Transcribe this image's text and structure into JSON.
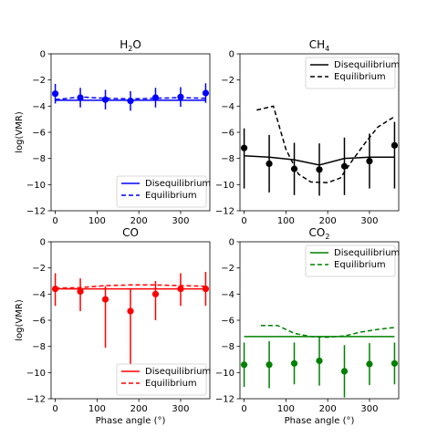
{
  "chart_data": [
    {
      "type": "line",
      "title_main": "H",
      "title_sub": "2",
      "title_tail": "O",
      "ylabel": "log(VMR)",
      "xlabel": "",
      "color": "#0000ff",
      "xlim": [
        -10,
        370
      ],
      "ylim": [
        -12,
        0
      ],
      "xticks": [
        "0",
        "100",
        "200",
        "300"
      ],
      "yticks": [
        "0",
        "−2",
        "−4",
        "−6",
        "−8",
        "−10",
        "−12"
      ],
      "legend_position": "lower-right",
      "legend": [
        "Disequilibrium",
        "Equilibrium"
      ],
      "disequilibrium": {
        "x": [
          0,
          360
        ],
        "y": [
          -3.55,
          -3.55
        ]
      },
      "equilibrium": {
        "x": [
          0,
          60,
          120,
          180,
          240,
          300,
          360
        ],
        "y": [
          -3.5,
          -3.3,
          -3.4,
          -3.45,
          -3.4,
          -3.35,
          -3.4
        ]
      },
      "points": {
        "x": [
          0,
          60,
          120,
          180,
          240,
          300,
          360
        ],
        "y": [
          -3.05,
          -3.35,
          -3.5,
          -3.6,
          -3.35,
          -3.3,
          -3.0
        ],
        "err_low": [
          0.75,
          0.75,
          0.75,
          0.75,
          0.75,
          0.75,
          0.75
        ],
        "err_high": [
          0.75,
          0.75,
          0.75,
          0.75,
          0.75,
          0.75,
          0.75
        ]
      }
    },
    {
      "type": "line",
      "title_main": "CH",
      "title_sub": "4",
      "title_tail": "",
      "ylabel": "",
      "xlabel": "",
      "color": "#000000",
      "xlim": [
        -10,
        370
      ],
      "ylim": [
        -12,
        0
      ],
      "xticks": [
        "0",
        "100",
        "200",
        "300"
      ],
      "yticks": [
        "0",
        "−2",
        "−4",
        "−6",
        "−8",
        "−10",
        "−12"
      ],
      "legend_position": "top-right",
      "legend": [
        "Disequilibrium",
        "Equilibrium"
      ],
      "disequilibrium": {
        "x": [
          0,
          60,
          120,
          180,
          240,
          300,
          360
        ],
        "y": [
          -7.8,
          -7.9,
          -8.1,
          -8.5,
          -8.0,
          -7.9,
          -7.9
        ]
      },
      "equilibrium": {
        "x": [
          30,
          70,
          100,
          130,
          160,
          200,
          230,
          260,
          290,
          320,
          360
        ],
        "y": [
          -4.3,
          -4.0,
          -7.3,
          -9.2,
          -9.8,
          -9.85,
          -9.5,
          -8.1,
          -6.8,
          -5.6,
          -4.8
        ]
      },
      "points": {
        "x": [
          0,
          60,
          120,
          180,
          240,
          300,
          360
        ],
        "y": [
          -7.2,
          -8.4,
          -8.8,
          -8.85,
          -8.6,
          -8.2,
          -7.0
        ],
        "err_low": [
          3.1,
          2.2,
          2.0,
          2.0,
          2.2,
          2.1,
          3.3
        ],
        "err_high": [
          1.5,
          2.2,
          2.0,
          2.0,
          2.2,
          2.1,
          1.8
        ]
      }
    },
    {
      "type": "line",
      "title_main": "CO",
      "title_sub": "",
      "title_tail": "",
      "ylabel": "log(VMR)",
      "xlabel": "Phase angle (°)",
      "color": "#ff0000",
      "xlim": [
        -10,
        370
      ],
      "ylim": [
        -12,
        0
      ],
      "xticks": [
        "0",
        "100",
        "200",
        "300"
      ],
      "yticks": [
        "0",
        "−2",
        "−4",
        "−6",
        "−8",
        "−10",
        "−12"
      ],
      "legend_position": "lower-right",
      "legend": [
        "Disequilibrium",
        "Equilibrium"
      ],
      "disequilibrium": {
        "x": [
          0,
          360
        ],
        "y": [
          -3.6,
          -3.6
        ]
      },
      "equilibrium": {
        "x": [
          0,
          60,
          120,
          180,
          240,
          300,
          360
        ],
        "y": [
          -3.55,
          -3.5,
          -3.35,
          -3.3,
          -3.3,
          -3.35,
          -3.4
        ]
      },
      "points": {
        "x": [
          0,
          60,
          120,
          180,
          240,
          300,
          360
        ],
        "y": [
          -3.6,
          -3.8,
          -4.4,
          -5.3,
          -4.0,
          -3.6,
          -3.6
        ],
        "err_low": [
          1.3,
          1.5,
          3.7,
          4.1,
          2.0,
          1.3,
          1.3
        ],
        "err_high": [
          1.2,
          1.0,
          1.0,
          1.7,
          1.0,
          1.2,
          1.3
        ]
      }
    },
    {
      "type": "line",
      "title_main": "CO",
      "title_sub": "2",
      "title_tail": "",
      "ylabel": "",
      "xlabel": "Phase angle (°)",
      "color": "#008000",
      "xlim": [
        -10,
        370
      ],
      "ylim": [
        -12,
        0
      ],
      "xticks": [
        "0",
        "100",
        "200",
        "300"
      ],
      "yticks": [
        "0",
        "−2",
        "−4",
        "−6",
        "−8",
        "−10",
        "−12"
      ],
      "legend_position": "top-right",
      "legend": [
        "Disequilibrium",
        "Equilibrium"
      ],
      "disequilibrium": {
        "x": [
          0,
          360
        ],
        "y": [
          -7.25,
          -7.25
        ]
      },
      "equilibrium": {
        "x": [
          40,
          80,
          120,
          160,
          200,
          240,
          280,
          320,
          360
        ],
        "y": [
          -6.4,
          -6.4,
          -7.0,
          -7.25,
          -7.3,
          -7.2,
          -6.9,
          -6.7,
          -6.55
        ]
      },
      "points": {
        "x": [
          0,
          60,
          120,
          180,
          240,
          300,
          360
        ],
        "y": [
          -9.4,
          -9.4,
          -9.3,
          -9.1,
          -9.9,
          -9.35,
          -9.3
        ],
        "err_low": [
          1.7,
          1.8,
          1.6,
          1.9,
          2.0,
          1.6,
          1.6
        ],
        "err_high": [
          1.7,
          1.8,
          1.6,
          1.9,
          2.0,
          1.6,
          1.6
        ]
      }
    }
  ]
}
